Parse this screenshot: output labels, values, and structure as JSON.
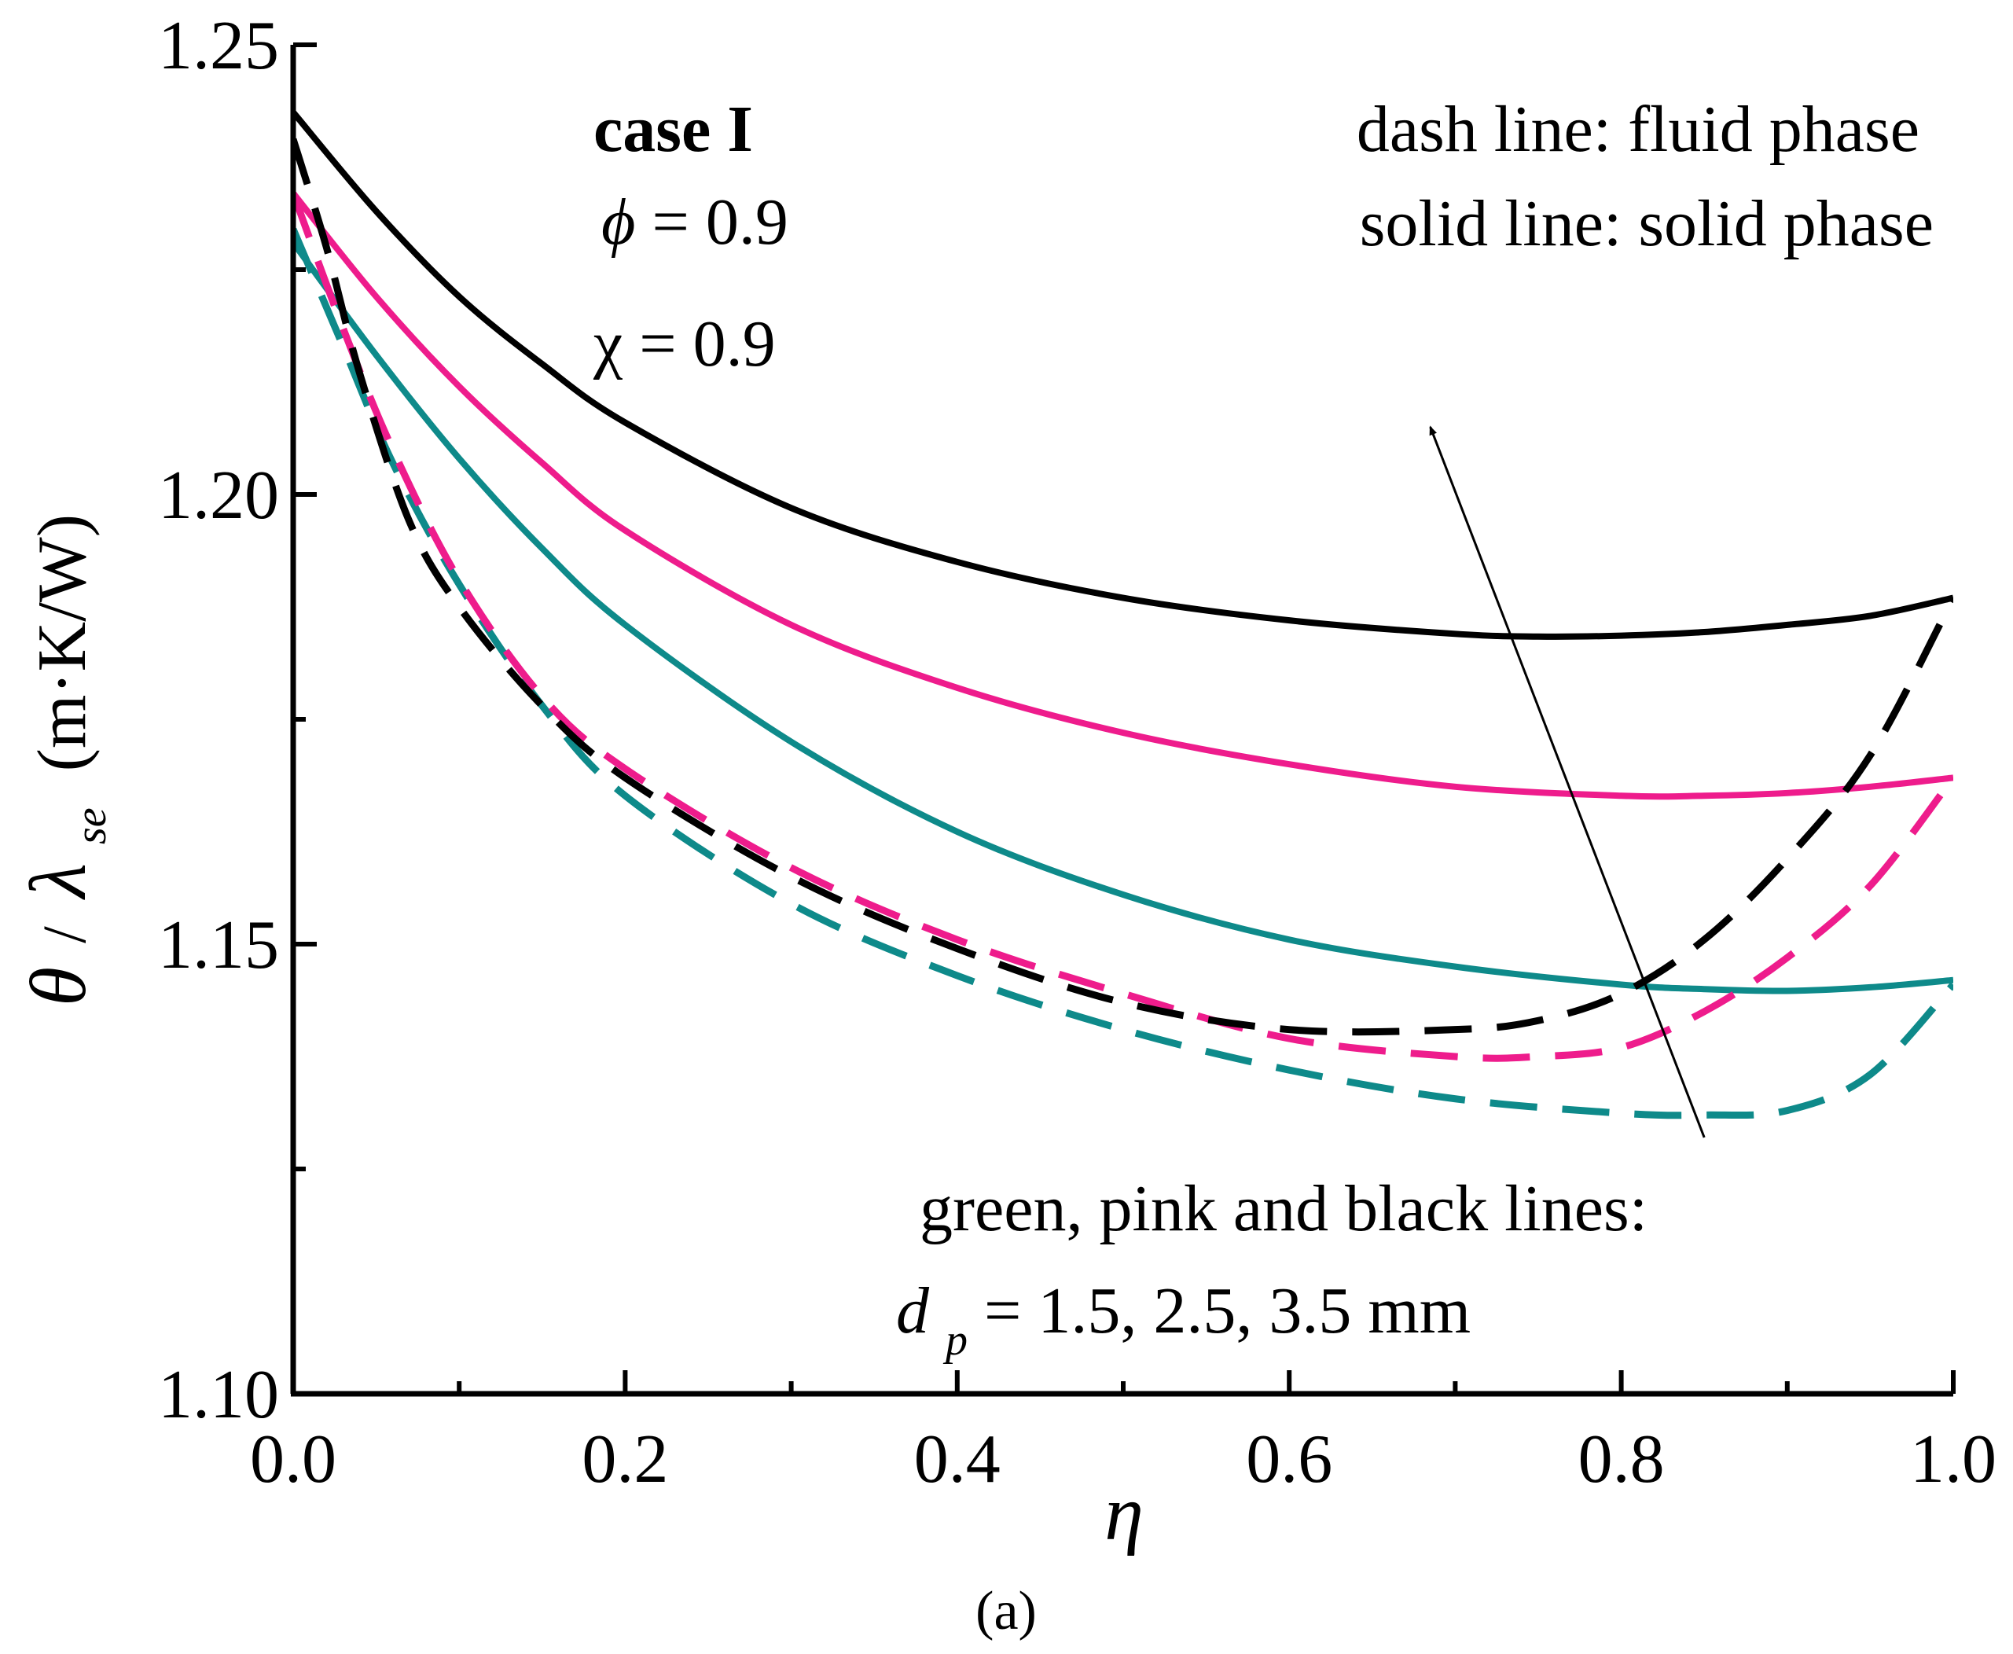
{
  "chart_data": {
    "type": "line",
    "title": "",
    "xlabel": "η",
    "ylabel": {
      "symbol": "θ",
      "slash": "/",
      "lambda": "λ",
      "subscript": "se",
      "units": "(m·K/W)"
    },
    "xlim": [
      0.0,
      1.0
    ],
    "ylim": [
      1.1,
      1.25
    ],
    "x_ticks": [
      0.0,
      0.2,
      0.4,
      0.6,
      0.8,
      1.0
    ],
    "x_tick_labels": [
      "0.0",
      "0.2",
      "0.4",
      "0.6",
      "0.8",
      "1.0"
    ],
    "x_minor_ticks": [
      0.1,
      0.3,
      0.5,
      0.7,
      0.9
    ],
    "y_ticks": [
      1.1,
      1.15,
      1.2,
      1.25
    ],
    "y_tick_labels": [
      "1.10",
      "1.15",
      "1.20",
      "1.25"
    ],
    "y_minor_ticks": [
      1.125,
      1.175,
      1.225
    ],
    "grid": false,
    "caption": "(a)",
    "annotations": {
      "case_label": "case I",
      "phi_symbol": "ϕ",
      "phi_value": " = 0.9",
      "chi_text": "χ = 0.9",
      "legend_dash": "dash line: fluid phase",
      "legend_solid": "solid line: solid phase",
      "colors_text": "green, pink and black lines:",
      "dp_symbol": "d",
      "dp_subscript": "p",
      "dp_values": "= 1.5, 2.5, 3.5 mm",
      "arrow": {
        "from": [
          0.85,
          1.1285
        ],
        "to": [
          0.685,
          1.2075
        ]
      }
    },
    "series": [
      {
        "name": "solid phase, dp = 1.5 mm",
        "color": "#0e8a8a",
        "style": "solid",
        "x": [
          0.0,
          0.05,
          0.1,
          0.15,
          0.2,
          0.3,
          0.4,
          0.5,
          0.6,
          0.7,
          0.8,
          0.85,
          0.9,
          0.95,
          1.0
        ],
        "y": [
          1.228,
          1.2155,
          1.204,
          1.194,
          1.1855,
          1.1725,
          1.1625,
          1.1555,
          1.1505,
          1.1475,
          1.1455,
          1.145,
          1.1448,
          1.1452,
          1.146
        ]
      },
      {
        "name": "solid phase, dp = 2.5 mm",
        "color": "#ee1c8c",
        "style": "solid",
        "x": [
          0.0,
          0.05,
          0.1,
          0.15,
          0.2,
          0.3,
          0.4,
          0.5,
          0.6,
          0.7,
          0.8,
          0.85,
          0.9,
          0.95,
          1.0
        ],
        "y": [
          1.2335,
          1.222,
          1.212,
          1.2035,
          1.196,
          1.1855,
          1.1785,
          1.1735,
          1.17,
          1.1675,
          1.1665,
          1.1665,
          1.1668,
          1.1675,
          1.1685
        ]
      },
      {
        "name": "solid phase, dp = 3.5 mm",
        "color": "#000000",
        "style": "solid",
        "x": [
          0.0,
          0.05,
          0.1,
          0.15,
          0.2,
          0.3,
          0.4,
          0.5,
          0.6,
          0.7,
          0.75,
          0.8,
          0.85,
          0.9,
          0.95,
          1.0
        ],
        "y": [
          1.2425,
          1.2315,
          1.222,
          1.2145,
          1.208,
          1.1985,
          1.1925,
          1.1885,
          1.186,
          1.1845,
          1.1842,
          1.1843,
          1.1847,
          1.1855,
          1.1865,
          1.1885
        ]
      },
      {
        "name": "fluid phase, dp = 1.5 mm",
        "color": "#0e8a8a",
        "style": "dash",
        "x": [
          0.0,
          0.03,
          0.06,
          0.1,
          0.15,
          0.2,
          0.3,
          0.4,
          0.5,
          0.6,
          0.7,
          0.8,
          0.85,
          0.9,
          0.95,
          1.0
        ],
        "y": [
          1.2295,
          1.2165,
          1.2035,
          1.19,
          1.1765,
          1.1665,
          1.1545,
          1.1465,
          1.1405,
          1.136,
          1.1328,
          1.1312,
          1.131,
          1.1315,
          1.1355,
          1.1455
        ]
      },
      {
        "name": "fluid phase, dp = 2.5 mm",
        "color": "#ee1c8c",
        "style": "dash",
        "x": [
          0.0,
          0.03,
          0.06,
          0.1,
          0.15,
          0.2,
          0.3,
          0.4,
          0.5,
          0.6,
          0.7,
          0.75,
          0.8,
          0.85,
          0.9,
          0.95,
          1.0
        ],
        "y": [
          1.2335,
          1.2185,
          1.205,
          1.1905,
          1.1775,
          1.1695,
          1.1585,
          1.1505,
          1.1445,
          1.1395,
          1.1375,
          1.1375,
          1.1385,
          1.1425,
          1.1485,
          1.1565,
          1.1685
        ]
      },
      {
        "name": "fluid phase, dp = 3.5 mm",
        "color": "#000000",
        "style": "dash",
        "x": [
          0.0,
          0.02,
          0.04,
          0.07,
          0.1,
          0.15,
          0.2,
          0.3,
          0.4,
          0.5,
          0.6,
          0.7,
          0.75,
          0.8,
          0.85,
          0.9,
          0.95,
          1.0
        ],
        "y": [
          1.2395,
          1.2275,
          1.2135,
          1.197,
          1.1875,
          1.1765,
          1.1685,
          1.1575,
          1.1495,
          1.1435,
          1.1405,
          1.1405,
          1.1415,
          1.1445,
          1.1505,
          1.1595,
          1.171,
          1.1885
        ]
      }
    ]
  }
}
